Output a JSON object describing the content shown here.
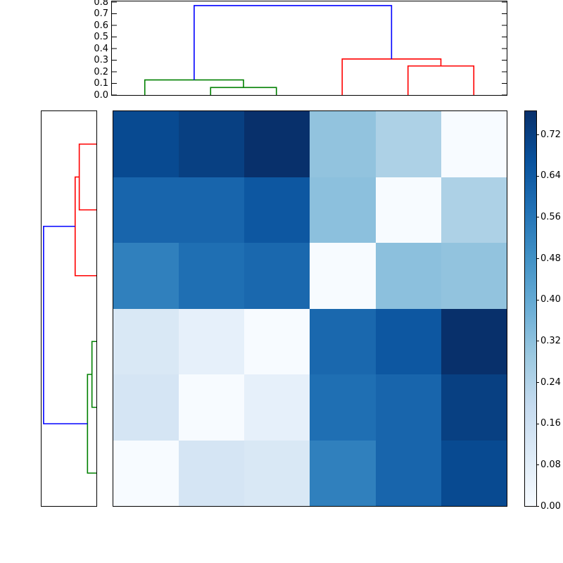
{
  "figure": {
    "background": "#ffffff",
    "axis_color": "#000000",
    "link_colors": {
      "green": "#008000",
      "red": "#ff0000",
      "blue": "#0000ff"
    }
  },
  "chart_data": {
    "type": "heatmap",
    "subtype": "clustered-distance-matrix-with-dendrograms",
    "title": "",
    "colormap": "Blues",
    "vmin": 0.0,
    "vmax": 0.765,
    "grid": false,
    "n_rows": 6,
    "n_cols": 6,
    "matrix_values": [
      [
        0.69,
        0.72,
        0.765,
        0.31,
        0.25,
        0.0
      ],
      [
        0.61,
        0.61,
        0.65,
        0.32,
        0.0,
        0.25
      ],
      [
        0.53,
        0.58,
        0.6,
        0.0,
        0.32,
        0.31
      ],
      [
        0.115,
        0.065,
        0.0,
        0.6,
        0.65,
        0.765
      ],
      [
        0.13,
        0.0,
        0.065,
        0.58,
        0.61,
        0.72
      ],
      [
        0.0,
        0.13,
        0.115,
        0.53,
        0.61,
        0.69
      ]
    ],
    "matrix_colors": [
      [
        "#084a91",
        "#084082",
        "#08306b",
        "#92c3de",
        "#add1e6",
        "#f7fbff"
      ],
      [
        "#1865ac",
        "#1865ac",
        "#0d57a1",
        "#8cc0dd",
        "#f7fbff",
        "#add1e6"
      ],
      [
        "#3080bd",
        "#1f6fb3",
        "#1a68ae",
        "#f7fbff",
        "#8cc0dd",
        "#92c3de"
      ],
      [
        "#d9e8f5",
        "#e6f0fa",
        "#f7fbff",
        "#1a68ae",
        "#0d57a1",
        "#08306b"
      ],
      [
        "#d5e5f4",
        "#f7fbff",
        "#e6f0fa",
        "#1f6fb3",
        "#1865ac",
        "#084082"
      ],
      [
        "#f7fbff",
        "#d5e5f4",
        "#d9e8f5",
        "#3080bd",
        "#1865ac",
        "#084a91"
      ]
    ],
    "top_dendrogram": {
      "orientation": "top",
      "ylim": [
        0,
        0.8
      ],
      "axis_tick_labels": [
        "0.0",
        "0.1",
        "0.2",
        "0.3",
        "0.4",
        "0.5",
        "0.6",
        "0.7",
        "0.8"
      ],
      "axis_tick_values": [
        0,
        0.1,
        0.2,
        0.3,
        0.4,
        0.5,
        0.6,
        0.7,
        0.8
      ],
      "leaf_domain": [
        0,
        60
      ],
      "leaf_positions": [
        5,
        15,
        25,
        35,
        45,
        55
      ],
      "links": [
        {
          "color": "green",
          "a_pos": 15,
          "a_base": 0,
          "b_pos": 25,
          "b_base": 0,
          "height": 0.065
        },
        {
          "color": "green",
          "a_pos": 5,
          "a_base": 0,
          "b_pos": 20,
          "b_base": 0.065,
          "height": 0.13
        },
        {
          "color": "red",
          "a_pos": 45,
          "a_base": 0,
          "b_pos": 55,
          "b_base": 0,
          "height": 0.25
        },
        {
          "color": "red",
          "a_pos": 35,
          "a_base": 0,
          "b_pos": 50,
          "b_base": 0.25,
          "height": 0.31
        },
        {
          "color": "blue",
          "a_pos": 12.5,
          "a_base": 0.13,
          "b_pos": 42.5,
          "b_base": 0.31,
          "height": 0.77
        }
      ]
    },
    "left_dendrogram": {
      "orientation": "left",
      "xlim": [
        0,
        0.8
      ],
      "leaf_domain": [
        0,
        60
      ],
      "leaf_positions": [
        5,
        15,
        25,
        35,
        45,
        55
      ],
      "links": [
        {
          "color": "red",
          "a_pos": 5,
          "a_base": 0,
          "b_pos": 15,
          "b_base": 0,
          "height": 0.25
        },
        {
          "color": "red",
          "a_pos": 10,
          "a_base": 0.25,
          "b_pos": 25,
          "b_base": 0,
          "height": 0.31
        },
        {
          "color": "green",
          "a_pos": 35,
          "a_base": 0,
          "b_pos": 45,
          "b_base": 0,
          "height": 0.065
        },
        {
          "color": "green",
          "a_pos": 40,
          "a_base": 0.065,
          "b_pos": 55,
          "b_base": 0,
          "height": 0.13
        },
        {
          "color": "blue",
          "a_pos": 17.5,
          "a_base": 0.31,
          "b_pos": 47.5,
          "b_base": 0.13,
          "height": 0.77
        }
      ]
    },
    "colorbar": {
      "tick_labels": [
        "0.00",
        "0.08",
        "0.16",
        "0.24",
        "0.32",
        "0.40",
        "0.48",
        "0.56",
        "0.64",
        "0.72"
      ],
      "tick_values": [
        0.0,
        0.08,
        0.16,
        0.24,
        0.32,
        0.4,
        0.48,
        0.56,
        0.64,
        0.72
      ],
      "gradient_stops": [
        "#f7fbff",
        "#deebf7",
        "#c6dbef",
        "#9ecae1",
        "#6baed6",
        "#4292c6",
        "#2171b5",
        "#08519c",
        "#08306b"
      ]
    }
  }
}
